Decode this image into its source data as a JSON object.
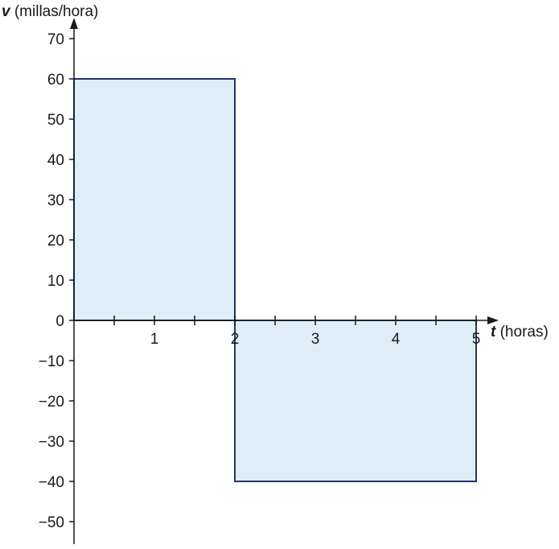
{
  "chart_data": {
    "type": "area",
    "title": "",
    "xlabel": {
      "var": "t",
      "unit": " (horas)"
    },
    "ylabel": {
      "var": "v",
      "unit": " (millas/hora)"
    },
    "xlim": [
      0,
      5
    ],
    "ylim": [
      -55,
      75
    ],
    "x_ticks_labeled": [
      1,
      2,
      3,
      4,
      5
    ],
    "x_ticks_minor": [
      0.5,
      1.5,
      2.5,
      3.5,
      4.5
    ],
    "y_ticks_labeled": [
      {
        "value": 70,
        "label": "70"
      },
      {
        "value": 60,
        "label": "60"
      },
      {
        "value": 50,
        "label": "50"
      },
      {
        "value": 40,
        "label": "40"
      },
      {
        "value": 30,
        "label": "30"
      },
      {
        "value": 20,
        "label": "20"
      },
      {
        "value": 10,
        "label": "10"
      },
      {
        "value": 0,
        "label": "0"
      },
      {
        "value": -10,
        "label": "−10"
      },
      {
        "value": -20,
        "label": "−20"
      },
      {
        "value": -30,
        "label": "−30"
      },
      {
        "value": -40,
        "label": "−40"
      },
      {
        "value": -50,
        "label": "−50"
      }
    ],
    "series": [
      {
        "segments": [
          {
            "x0": 0,
            "x1": 2,
            "y": 60
          },
          {
            "x0": 2,
            "x1": 5,
            "y": -40
          }
        ]
      }
    ],
    "grid": false,
    "colors": {
      "fill": "#ddeef7",
      "stroke": "#1f3864",
      "axis": "#1a1a1a"
    }
  }
}
